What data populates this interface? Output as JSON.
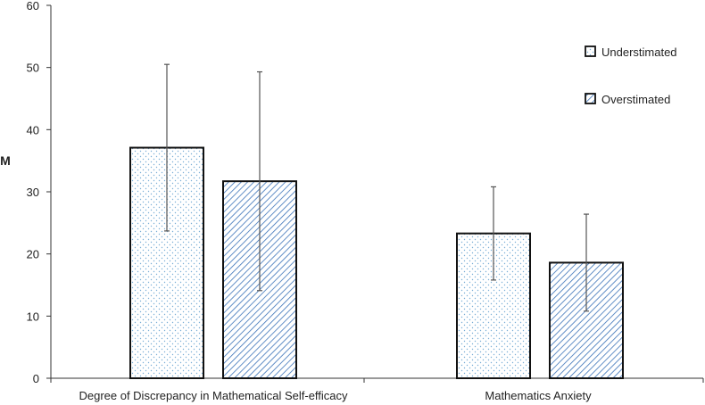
{
  "chart_data": {
    "type": "bar",
    "title": "",
    "xlabel": "",
    "ylabel": "M",
    "ylim": [
      0,
      60
    ],
    "yticks": [
      0,
      10,
      20,
      30,
      40,
      50,
      60
    ],
    "categories": [
      "Degree of Discrepancy in Mathematical Self-efficacy",
      "Mathematics Anxiety"
    ],
    "series": [
      {
        "name": "Understimated",
        "pattern": "dots",
        "fill_color": "#ffffff",
        "pattern_color": "#7aaed6",
        "values": [
          37.1,
          23.3
        ],
        "errors": [
          13.4,
          7.5
        ]
      },
      {
        "name": "Overstimated",
        "pattern": "diagonal-hatch",
        "fill_color": "#ffffff",
        "pattern_color": "#3a72b8",
        "values": [
          31.7,
          18.6
        ],
        "errors": [
          17.6,
          7.8
        ]
      }
    ],
    "legend_position": "top-right",
    "error_bars": true
  }
}
